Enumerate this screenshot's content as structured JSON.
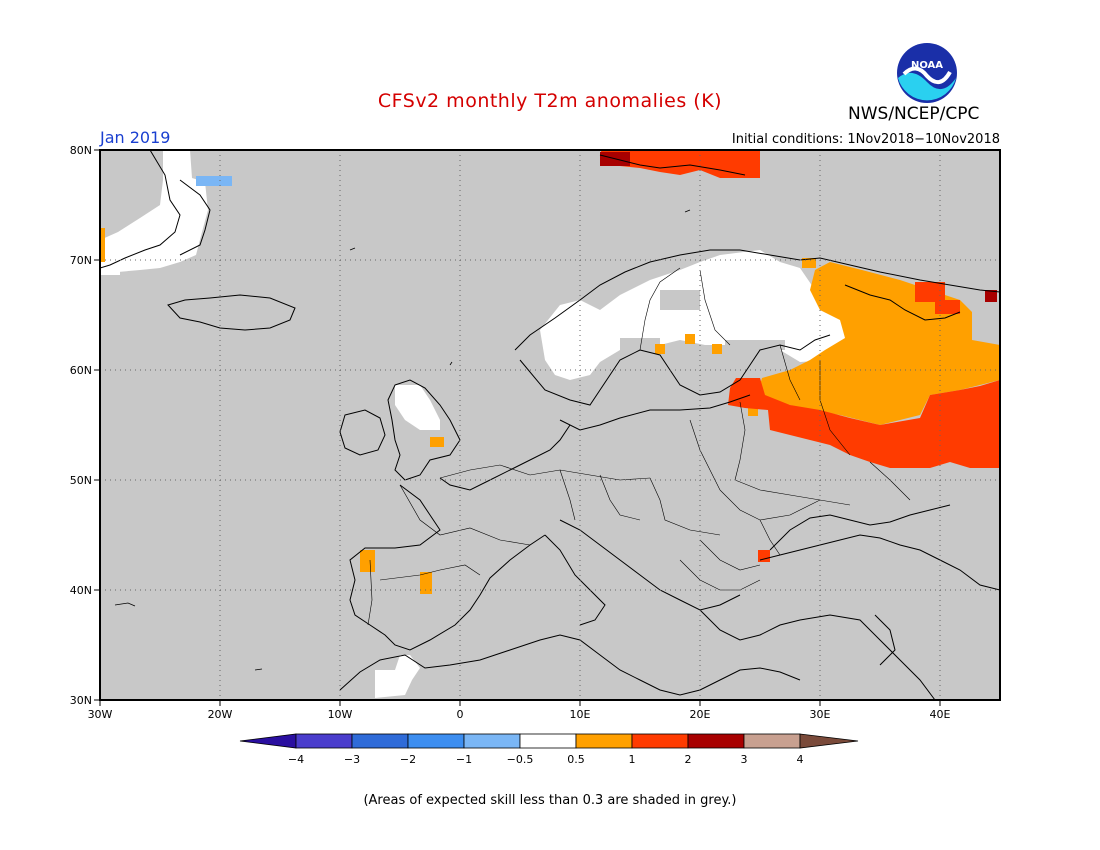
{
  "header": {
    "title": "CFSv2 monthly T2m anomalies (K)",
    "agency": "NWS/NCEP/CPC",
    "logo_text": "NOAA",
    "period": "Jan 2019",
    "initial_conditions": "Initial conditions: 1Nov2018−10Nov2018"
  },
  "map": {
    "lon_range": [
      -30,
      45
    ],
    "lat_range": [
      30,
      80
    ],
    "lon_ticks": [
      "30W",
      "20W",
      "10W",
      "0",
      "10E",
      "20E",
      "30E",
      "40E"
    ],
    "lat_ticks": [
      "30N",
      "40N",
      "50N",
      "60N",
      "70N",
      "80N"
    ],
    "grid": "dotted",
    "skill_mask_color": "#c8c8c8"
  },
  "colorbar": {
    "colors": [
      "#2a0fa0",
      "#4a3dcc",
      "#2f6bd8",
      "#3d8ef0",
      "#7ab6f5",
      "#ffffff",
      "#ffa000",
      "#ff3b00",
      "#a80000",
      "#c8a090",
      "#7a4a3a"
    ],
    "labels": [
      "−4",
      "−3",
      "−2",
      "−1",
      "−0.5",
      "0.5",
      "1",
      "2",
      "3",
      "4"
    ]
  },
  "footnote": "(Areas of expected skill less than 0.3 are shaded in grey.)"
}
